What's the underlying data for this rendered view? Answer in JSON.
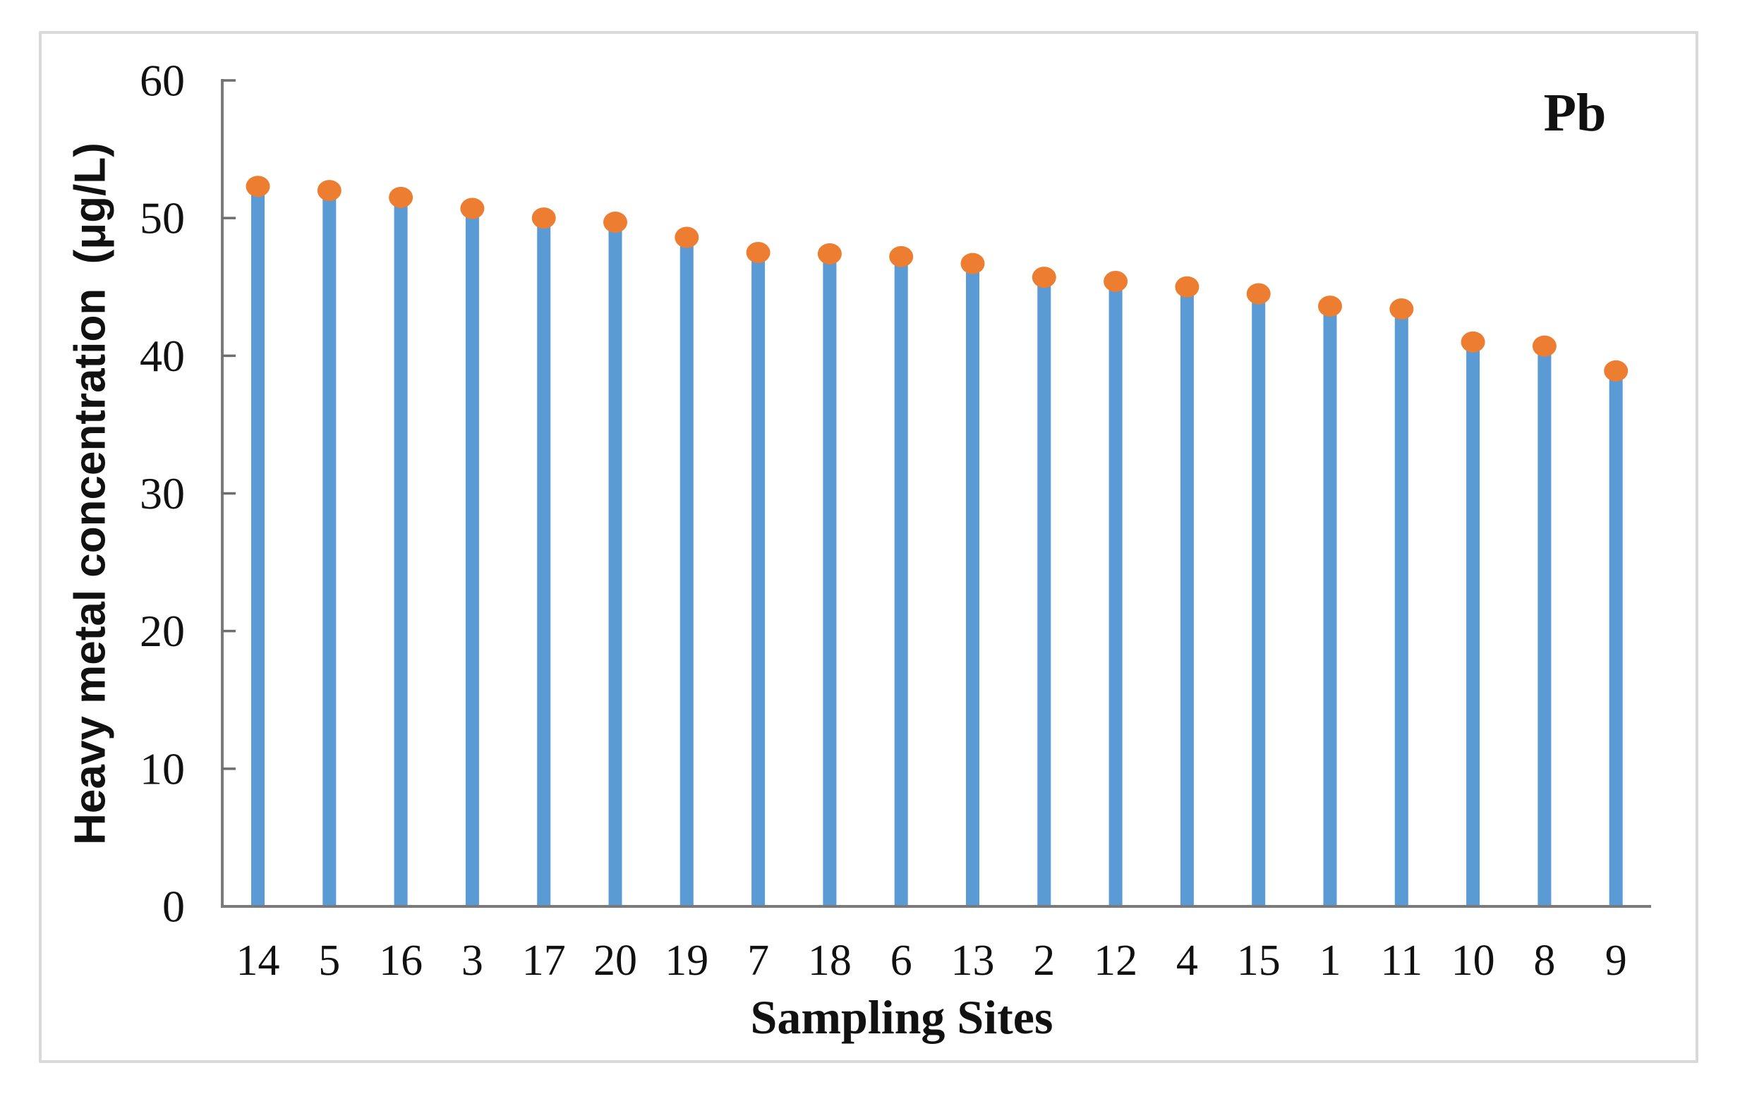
{
  "chart_data": {
    "type": "bar",
    "style": "lollipop (thin bars with circular point markers on top)",
    "title": "",
    "annotation": "Pb",
    "xlabel": "Sampling Sites",
    "ylabel": "Heavy metal concentration  (μg/L)",
    "categories": [
      "14",
      "5",
      "16",
      "3",
      "17",
      "20",
      "19",
      "7",
      "18",
      "6",
      "13",
      "2",
      "12",
      "4",
      "15",
      "1",
      "11",
      "10",
      "8",
      "9"
    ],
    "values": [
      52.3,
      52.0,
      51.5,
      50.7,
      50.0,
      49.7,
      48.6,
      47.5,
      47.4,
      47.2,
      46.7,
      45.7,
      45.4,
      45.0,
      44.5,
      43.6,
      43.4,
      41.0,
      40.7,
      38.9
    ],
    "ylim": [
      0,
      60
    ],
    "yticks": [
      0,
      10,
      20,
      30,
      40,
      50,
      60
    ],
    "grid": "off",
    "legend": "none",
    "colors": {
      "bar": "#5B9BD5",
      "marker": "#ED7D31",
      "axis": "#7a7a7a",
      "tick": "#6e6e6e",
      "text": "#111111",
      "frame_border": "#d9d9d9",
      "background": "#ffffff"
    }
  }
}
